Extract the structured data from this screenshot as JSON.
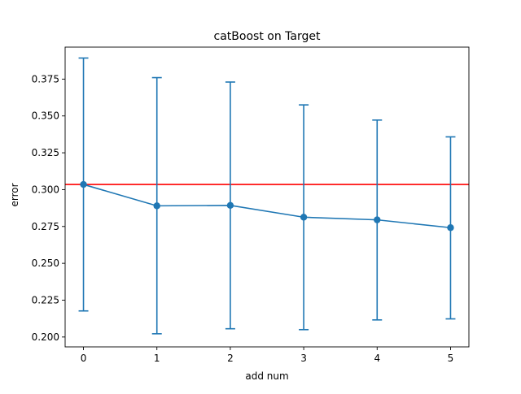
{
  "chart_data": {
    "type": "line",
    "title": "catBoost on Target",
    "xlabel": "add num",
    "ylabel": "error",
    "xlim": [
      -0.25,
      5.25
    ],
    "ylim": [
      0.1933,
      0.3967
    ],
    "x_ticks": [
      0,
      1,
      2,
      3,
      4,
      5
    ],
    "x_tick_labels": [
      "0",
      "1",
      "2",
      "3",
      "4",
      "5"
    ],
    "y_ticks": [
      0.2,
      0.225,
      0.25,
      0.275,
      0.3,
      0.325,
      0.35,
      0.375
    ],
    "y_tick_labels": [
      "0.200",
      "0.225",
      "0.250",
      "0.275",
      "0.300",
      "0.325",
      "0.350",
      "0.375"
    ],
    "grid": false,
    "series": [
      {
        "x": [
          0,
          1,
          2,
          3,
          4,
          5
        ],
        "y": [
          0.3035,
          0.289,
          0.2893,
          0.2813,
          0.2795,
          0.2742
        ],
        "error_lower": [
          0.2177,
          0.2022,
          0.2056,
          0.205,
          0.2116,
          0.2123
        ],
        "error_upper": [
          0.3893,
          0.376,
          0.373,
          0.3575,
          0.3472,
          0.3358
        ],
        "color": "#1f77b4",
        "marker": "circle"
      }
    ],
    "reference_line": {
      "y": 0.3035,
      "color": "#ff0000"
    }
  }
}
